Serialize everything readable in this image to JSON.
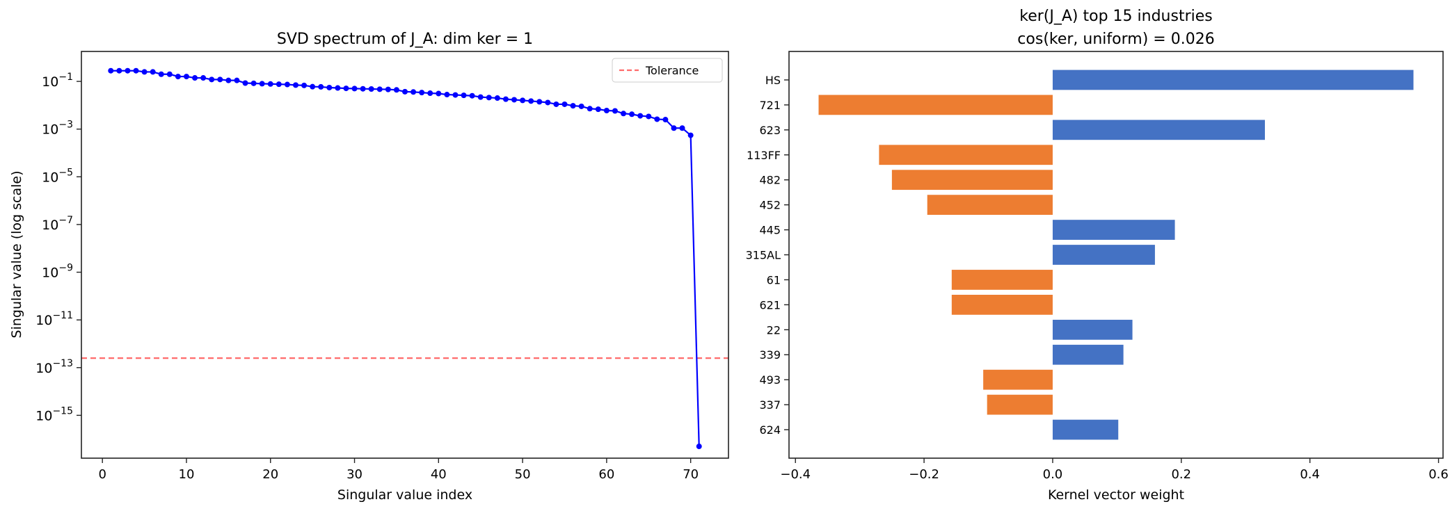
{
  "chart_data": [
    {
      "type": "line",
      "title": "SVD spectrum of J_A: dim ker = 1",
      "xlabel": "Singular value index",
      "ylabel": "Singular value (log scale)",
      "yscale": "log",
      "xlim": [
        -2.5,
        74.5
      ],
      "ylim": [
        1.6e-17,
        1.8
      ],
      "xticks": [
        0,
        10,
        20,
        30,
        40,
        50,
        60,
        70
      ],
      "yticks_exp": [
        -1,
        -3,
        -5,
        -7,
        -9,
        -11,
        -13,
        -15
      ],
      "grid": false,
      "legend_position": "top-right",
      "series": [
        {
          "color": "#0000ff",
          "marker": "circle",
          "x": [
            1,
            2,
            3,
            4,
            5,
            6,
            7,
            8,
            9,
            10,
            11,
            12,
            13,
            14,
            15,
            16,
            17,
            18,
            19,
            20,
            21,
            22,
            23,
            24,
            25,
            26,
            27,
            28,
            29,
            30,
            31,
            32,
            33,
            34,
            35,
            36,
            37,
            38,
            39,
            40,
            41,
            42,
            43,
            44,
            45,
            46,
            47,
            48,
            49,
            50,
            51,
            52,
            53,
            54,
            55,
            56,
            57,
            58,
            59,
            60,
            61,
            62,
            63,
            64,
            65,
            66,
            67,
            68,
            69,
            70,
            71
          ],
          "y": [
            0.28,
            0.28,
            0.28,
            0.28,
            0.25,
            0.25,
            0.2,
            0.2,
            0.16,
            0.16,
            0.14,
            0.14,
            0.12,
            0.12,
            0.11,
            0.11,
            0.085,
            0.083,
            0.08,
            0.078,
            0.076,
            0.074,
            0.07,
            0.068,
            0.06,
            0.059,
            0.055,
            0.053,
            0.051,
            0.05,
            0.049,
            0.048,
            0.047,
            0.046,
            0.044,
            0.037,
            0.036,
            0.034,
            0.032,
            0.031,
            0.028,
            0.027,
            0.026,
            0.025,
            0.022,
            0.021,
            0.02,
            0.018,
            0.017,
            0.016,
            0.015,
            0.014,
            0.013,
            0.011,
            0.011,
            0.0095,
            0.009,
            0.0072,
            0.0068,
            0.006,
            0.0058,
            0.0045,
            0.0042,
            0.0036,
            0.0034,
            0.0026,
            0.0025,
            0.0011,
            0.0011,
            0.00055,
            5e-17
          ]
        }
      ],
      "hline": {
        "name": "Tolerance",
        "y": 2.5e-13,
        "color": "#ff6b6b",
        "style": "dashed"
      }
    },
    {
      "type": "bar",
      "orientation": "horizontal",
      "title": "ker(J_A) top 15 industries",
      "subtitle": "cos(ker, uniform) = 0.026",
      "xlabel": "Kernel vector weight",
      "xlim": [
        -0.41,
        0.607
      ],
      "xticks": [
        "−0.4",
        "−0.2",
        "0.0",
        "0.2",
        "0.4",
        "0.6"
      ],
      "xtick_values": [
        -0.4,
        -0.2,
        0.0,
        0.2,
        0.4,
        0.6
      ],
      "grid": false,
      "positive_color": "#4472c4",
      "negative_color": "#ed7d31",
      "categories": [
        "HS",
        "721",
        "623",
        "113FF",
        "482",
        "452",
        "445",
        "315AL",
        "61",
        "621",
        "22",
        "339",
        "493",
        "337",
        "624"
      ],
      "values": [
        0.561,
        -0.364,
        0.33,
        -0.27,
        -0.25,
        -0.195,
        0.19,
        0.159,
        -0.157,
        -0.157,
        0.124,
        0.11,
        -0.108,
        -0.102,
        0.102
      ]
    }
  ]
}
